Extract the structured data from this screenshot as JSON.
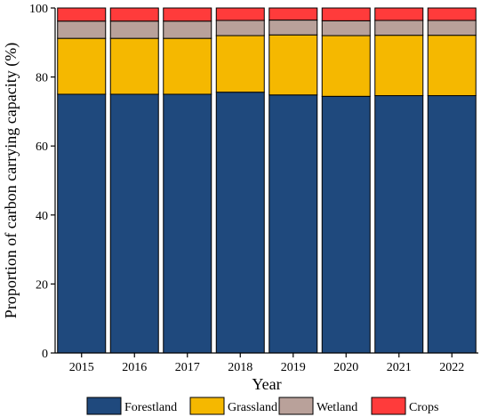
{
  "chart_data": {
    "type": "bar",
    "stacked": true,
    "categories": [
      "2015",
      "2016",
      "2017",
      "2018",
      "2019",
      "2020",
      "2021",
      "2022"
    ],
    "series": [
      {
        "name": "Forestland",
        "color": "#1f497d",
        "values": [
          75.0,
          75.0,
          75.0,
          75.6,
          74.8,
          74.4,
          74.6,
          74.6
        ]
      },
      {
        "name": "Grassland",
        "color": "#f5b800",
        "values": [
          16.2,
          16.2,
          16.2,
          16.4,
          17.4,
          17.6,
          17.5,
          17.5
        ]
      },
      {
        "name": "Wetland",
        "color": "#b9a19a",
        "values": [
          5.0,
          5.0,
          5.0,
          4.4,
          4.3,
          4.3,
          4.3,
          4.3
        ]
      },
      {
        "name": "Crops",
        "color": "#ff3b3b",
        "values": [
          3.8,
          3.8,
          3.8,
          3.6,
          3.5,
          3.7,
          3.6,
          3.6
        ]
      }
    ],
    "xlabel": "Year",
    "ylabel": "Proportion of carbon carrying capacity (%)",
    "ylim": [
      0,
      100
    ],
    "yticks": [
      0,
      20,
      40,
      60,
      80,
      100
    ],
    "grid": false,
    "legend_position": "bottom"
  }
}
